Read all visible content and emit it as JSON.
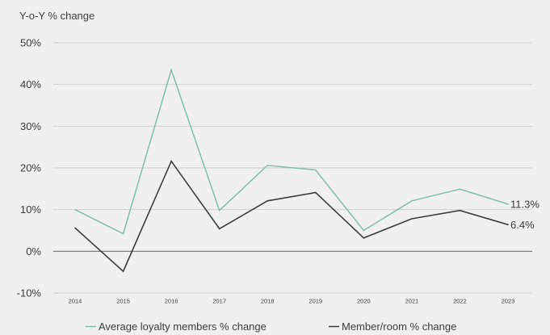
{
  "chart_data": {
    "type": "line",
    "title": "",
    "ylabel": "Y-o-Y % change",
    "xlabel": "",
    "categories": [
      "2014",
      "2015",
      "2016",
      "2017",
      "2018",
      "2019",
      "2020",
      "2021",
      "2022",
      "2023"
    ],
    "y_ticks": [
      "50%",
      "40%",
      "30%",
      "20%",
      "10%",
      "0%",
      "-10%"
    ],
    "y_tick_values": [
      50,
      40,
      30,
      20,
      10,
      0,
      -10
    ],
    "ylim": [
      -10,
      50
    ],
    "grid": true,
    "legend_position": "bottom",
    "series": [
      {
        "name": "Average loyalty members % change",
        "color": "#86bda3",
        "values": [
          10.0,
          4.2,
          43.5,
          9.8,
          20.6,
          19.5,
          5.0,
          12.1,
          14.9,
          11.3
        ],
        "end_label": "11.3%"
      },
      {
        "name": "Member/room % change",
        "color": "#3b403d",
        "values": [
          5.6,
          -4.8,
          21.6,
          5.4,
          12.1,
          14.1,
          3.2,
          7.8,
          9.8,
          6.4
        ],
        "end_label": "6.4%"
      }
    ]
  }
}
